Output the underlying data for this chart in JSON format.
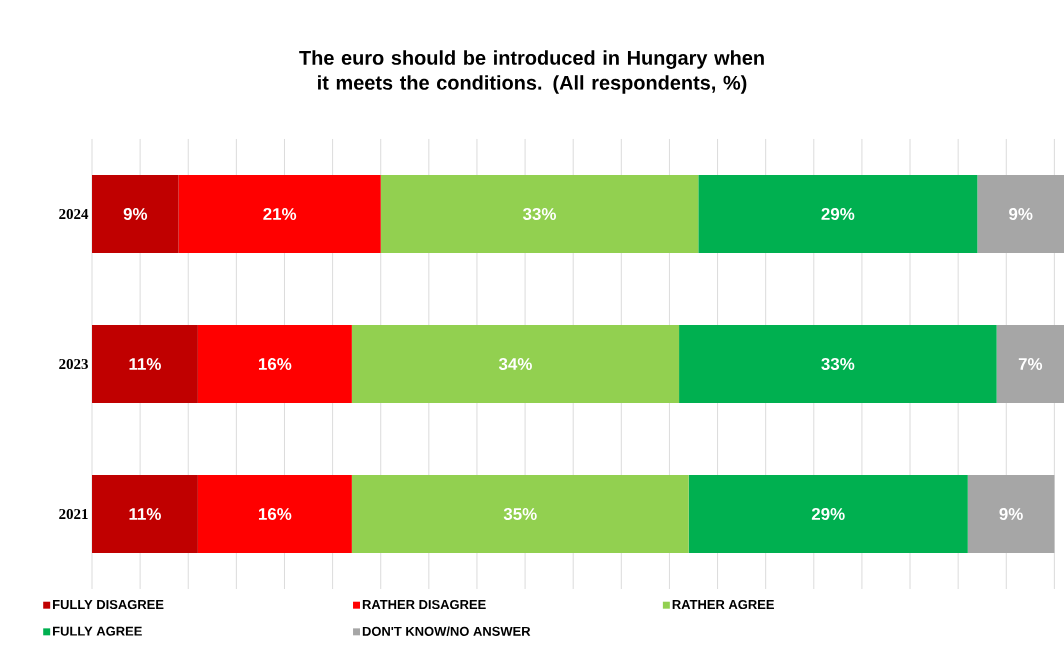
{
  "chart_data": {
    "type": "bar",
    "orientation": "horizontal",
    "stacked": true,
    "title": "The euro should be introduced in Hungary when it meets the conditions. (All respondents, %)",
    "categories": [
      "2024",
      "2023",
      "2021"
    ],
    "series": [
      {
        "name": "FULLY DISAGREE",
        "color": "#c00000",
        "values": [
          9,
          11,
          11
        ],
        "value_labels": [
          "9%",
          "11%",
          "11%"
        ]
      },
      {
        "name": "RATHER DISAGREE",
        "color": "#ff0000",
        "values": [
          21,
          16,
          16
        ],
        "value_labels": [
          "21%",
          "16%",
          "16%"
        ]
      },
      {
        "name": "RATHER AGREE",
        "color": "#92d050",
        "values": [
          33,
          34,
          35
        ],
        "value_labels": [
          "33%",
          "34%",
          "35%"
        ]
      },
      {
        "name": "FULLY AGREE",
        "color": "#00b050",
        "values": [
          29,
          33,
          29
        ],
        "value_labels": [
          "29%",
          "33%",
          "29%"
        ]
      },
      {
        "name": "DON'T KNOW/NO ANSWER",
        "color": "#a6a6a6",
        "values": [
          9,
          7,
          9
        ],
        "value_labels": [
          "9%",
          "7%",
          "9%"
        ]
      }
    ],
    "tick_labels": "y",
    "grid": "x",
    "legend": "bottom"
  }
}
